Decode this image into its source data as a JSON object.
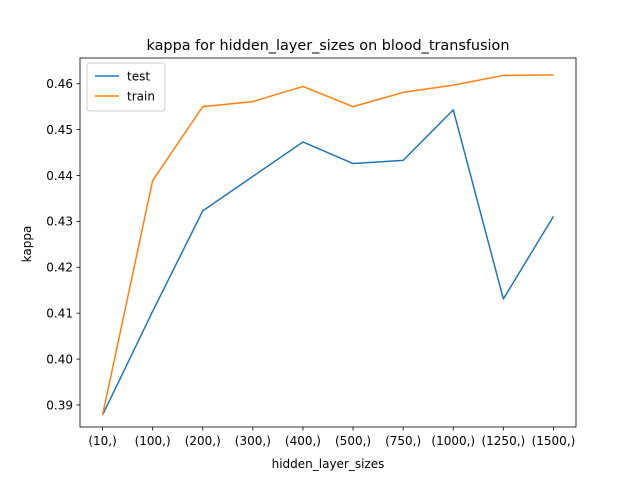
{
  "chart_data": {
    "type": "line",
    "title": "kappa for hidden_layer_sizes on  blood_transfusion",
    "xlabel": "hidden_layer_sizes",
    "ylabel": "kappa",
    "categories": [
      "(10,)",
      "(100,)",
      "(200,)",
      "(300,)",
      "(400,)",
      "(500,)",
      "(750,)",
      "(1000,)",
      "(1250,)",
      "(1500,)"
    ],
    "yticks": [
      "0.39",
      "0.40",
      "0.41",
      "0.42",
      "0.43",
      "0.44",
      "0.45",
      "0.46"
    ],
    "ylim": [
      0.3852,
      0.4656
    ],
    "grid": false,
    "legend_position": "top-left",
    "series": [
      {
        "name": "test",
        "color": "#1f77b4",
        "values": [
          0.3878,
          0.4104,
          0.4323,
          0.4398,
          0.4473,
          0.4426,
          0.4433,
          0.4543,
          0.4131,
          0.4311
        ]
      },
      {
        "name": "train",
        "color": "#ff7f0e",
        "values": [
          0.3878,
          0.4389,
          0.455,
          0.4561,
          0.4594,
          0.455,
          0.4581,
          0.4597,
          0.4618,
          0.4619
        ]
      }
    ]
  }
}
